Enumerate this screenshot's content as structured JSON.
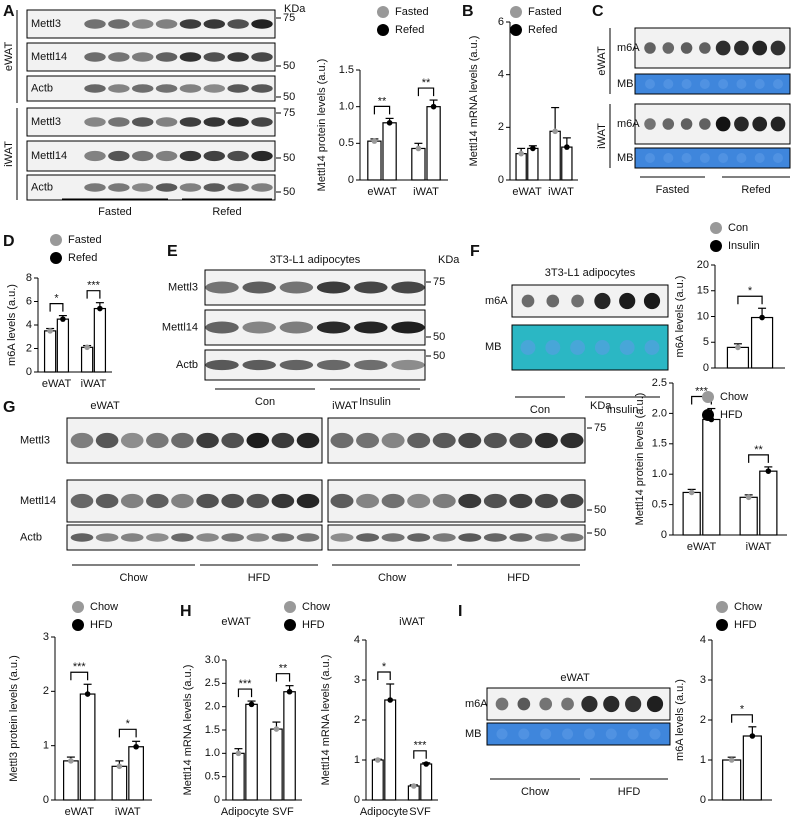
{
  "panel_labels": [
    "A",
    "B",
    "C",
    "D",
    "E",
    "F",
    "G",
    "H",
    "I"
  ],
  "blots": {
    "A": {
      "rows": [
        "Mettl3",
        "Mettl14",
        "Actb",
        "Mettl3",
        "Mettl14",
        "Actb"
      ],
      "groups": [
        "eWAT",
        "iWAT"
      ],
      "unit": "KDa",
      "markers": [
        "75",
        "50",
        "50",
        "75",
        "50",
        "50"
      ],
      "conditions": [
        "Fasted",
        "Refed"
      ]
    },
    "C": {
      "rows": [
        "m6A",
        "MB",
        "m6A",
        "MB"
      ],
      "groups": [
        "eWAT",
        "iWAT"
      ],
      "conditions": [
        "Fasted",
        "Refed"
      ]
    },
    "E": {
      "title": "3T3-L1 adipocytes",
      "rows": [
        "Mettl3",
        "Mettl14",
        "Actb"
      ],
      "unit": "KDa",
      "markers": [
        "75",
        "50",
        "50"
      ],
      "conditions": [
        "Con",
        "Insulin"
      ]
    },
    "F": {
      "title": "3T3-L1 adipocytes",
      "rows": [
        "m6A",
        "MB"
      ],
      "conditions": [
        "Con",
        "Insulin"
      ]
    },
    "G": {
      "groups": [
        "eWAT",
        "iWAT"
      ],
      "rows": [
        "Mettl3",
        "Mettl14",
        "Actb"
      ],
      "unit": "KDa",
      "markers": [
        "75",
        "50",
        "50"
      ],
      "conditions": [
        "Chow",
        "HFD"
      ]
    },
    "I": {
      "title": "eWAT",
      "rows": [
        "m6A",
        "MB"
      ],
      "conditions": [
        "Chow",
        "HFD"
      ]
    }
  },
  "chart_data": [
    {
      "type": "bar",
      "ylabel": "Mettl14 protein levels (a.u.)",
      "categories": [
        "eWAT",
        "iWAT"
      ],
      "series": [
        {
          "name": "Fasted",
          "color": "#999999",
          "values": [
            0.53,
            0.43
          ],
          "errors": [
            0.03,
            0.07
          ]
        },
        {
          "name": "Refed",
          "color": "#000000",
          "values": [
            0.78,
            1.0
          ],
          "errors": [
            0.06,
            0.09
          ]
        }
      ],
      "ylim": [
        0,
        1.5
      ],
      "yticks": [
        0,
        0.5,
        {
          "value": 1,
          "label": "1.0"
        },
        1.5
      ],
      "significance": [
        "**",
        "**"
      ]
    },
    {
      "type": "bar",
      "ylabel": "Mettl14 mRNA levels (a.u.)",
      "categories": [
        "eWAT",
        "iWAT"
      ],
      "series": [
        {
          "name": "Fasted",
          "color": "#999999",
          "values": [
            1.0,
            1.85
          ],
          "errors": [
            0.2,
            0.9
          ]
        },
        {
          "name": "Refed",
          "color": "#000000",
          "values": [
            1.2,
            1.25
          ],
          "errors": [
            0.1,
            0.35
          ]
        }
      ],
      "ylim": [
        0,
        6
      ],
      "yticks": [
        0,
        2,
        4,
        6
      ]
    },
    {
      "type": "bar",
      "ylabel": "m6A levels (a.u.)",
      "categories": [
        "eWAT",
        "iWAT"
      ],
      "series": [
        {
          "name": "Fasted",
          "color": "#999999",
          "values": [
            3.5,
            2.1
          ],
          "errors": [
            0.2,
            0.15
          ]
        },
        {
          "name": "Refed",
          "color": "#000000",
          "values": [
            4.5,
            5.4
          ],
          "errors": [
            0.3,
            0.5
          ]
        }
      ],
      "ylim": [
        0,
        8
      ],
      "yticks": [
        0,
        2,
        4,
        6,
        8
      ],
      "significance": [
        "*",
        "***"
      ]
    },
    {
      "type": "bar",
      "ylabel": "m6A levels (a.u.)",
      "categories": [
        null
      ],
      "series": [
        {
          "name": "Con",
          "color": "#999999",
          "values": [
            4.0
          ],
          "errors": [
            0.7
          ]
        },
        {
          "name": "Insulin",
          "color": "#000000",
          "values": [
            9.8
          ],
          "errors": [
            1.8
          ]
        }
      ],
      "ylim": [
        0,
        20
      ],
      "yticks": [
        0,
        5,
        10,
        15,
        20
      ],
      "significance": [
        "*"
      ]
    },
    {
      "type": "bar",
      "ylabel": "Mettl14 protein levels  (a.u.)",
      "categories": [
        "eWAT",
        "iWAT"
      ],
      "series": [
        {
          "name": "Chow",
          "color": "#999999",
          "values": [
            0.7,
            0.62
          ],
          "errors": [
            0.05,
            0.04
          ]
        },
        {
          "name": "HFD",
          "color": "#000000",
          "values": [
            1.9,
            1.05
          ],
          "errors": [
            0.18,
            0.07
          ]
        }
      ],
      "ylim": [
        0,
        2.5
      ],
      "yticks": [
        0,
        0.5,
        {
          "value": 1,
          "label": "1.0"
        },
        1.5,
        {
          "value": 2,
          "label": "2.0"
        },
        2.5
      ],
      "significance": [
        "***",
        "**"
      ]
    },
    {
      "type": "bar",
      "ylabel": "Mettl3 protein levels (a.u.)",
      "categories": [
        "eWAT",
        "iWAT"
      ],
      "series": [
        {
          "name": "Chow",
          "color": "#999999",
          "values": [
            0.72,
            0.62
          ],
          "errors": [
            0.07,
            0.1
          ]
        },
        {
          "name": "HFD",
          "color": "#000000",
          "values": [
            1.95,
            0.98
          ],
          "errors": [
            0.18,
            0.1
          ]
        }
      ],
      "ylim": [
        0,
        3
      ],
      "yticks": [
        0,
        1,
        2,
        3
      ],
      "significance": [
        "***",
        "*"
      ]
    },
    {
      "type": "bar",
      "title": "eWAT",
      "ylabel": "Mettl14 mRNA levels (a.u.)",
      "categories": [
        "Adipocyte",
        "SVF"
      ],
      "series": [
        {
          "name": "Chow",
          "color": "#999999",
          "values": [
            1.0,
            1.52
          ],
          "errors": [
            0.1,
            0.15
          ]
        },
        {
          "name": "HFD",
          "color": "#000000",
          "values": [
            2.05,
            2.32
          ],
          "errors": [
            0.07,
            0.13
          ]
        }
      ],
      "ylim": [
        0,
        3
      ],
      "yticks": [
        0,
        0.5,
        {
          "value": 1,
          "label": "1.0"
        },
        1.5,
        {
          "value": 2,
          "label": "2.0"
        },
        2.5,
        {
          "value": 3,
          "label": "3.0"
        }
      ],
      "significance": [
        "***",
        "**"
      ]
    },
    {
      "type": "bar",
      "title": "iWAT",
      "ylabel": "Mettl14 mRNA levels (a.u.)",
      "categories": [
        "Adipocyte",
        "SVF"
      ],
      "series": [
        {
          "name": "Chow",
          "color": "#999999",
          "values": [
            1.0,
            0.35
          ],
          "errors": [
            0.02,
            0.03
          ]
        },
        {
          "name": "HFD",
          "color": "#000000",
          "values": [
            2.5,
            0.9
          ],
          "errors": [
            0.4,
            0.03
          ]
        }
      ],
      "ylim": [
        0,
        4
      ],
      "yticks": [
        0,
        1,
        2,
        3,
        4
      ],
      "significance": [
        "*",
        "***"
      ]
    },
    {
      "type": "bar",
      "ylabel": "m6A levels (a.u.)",
      "categories": [
        null
      ],
      "series": [
        {
          "name": "Chow",
          "color": "#999999",
          "values": [
            1.0
          ],
          "errors": [
            0.07
          ]
        },
        {
          "name": "HFD",
          "color": "#000000",
          "values": [
            1.6
          ],
          "errors": [
            0.23
          ]
        }
      ],
      "ylim": [
        0,
        4
      ],
      "yticks": [
        0,
        1,
        2,
        3,
        4
      ],
      "significance": [
        "*"
      ]
    }
  ]
}
